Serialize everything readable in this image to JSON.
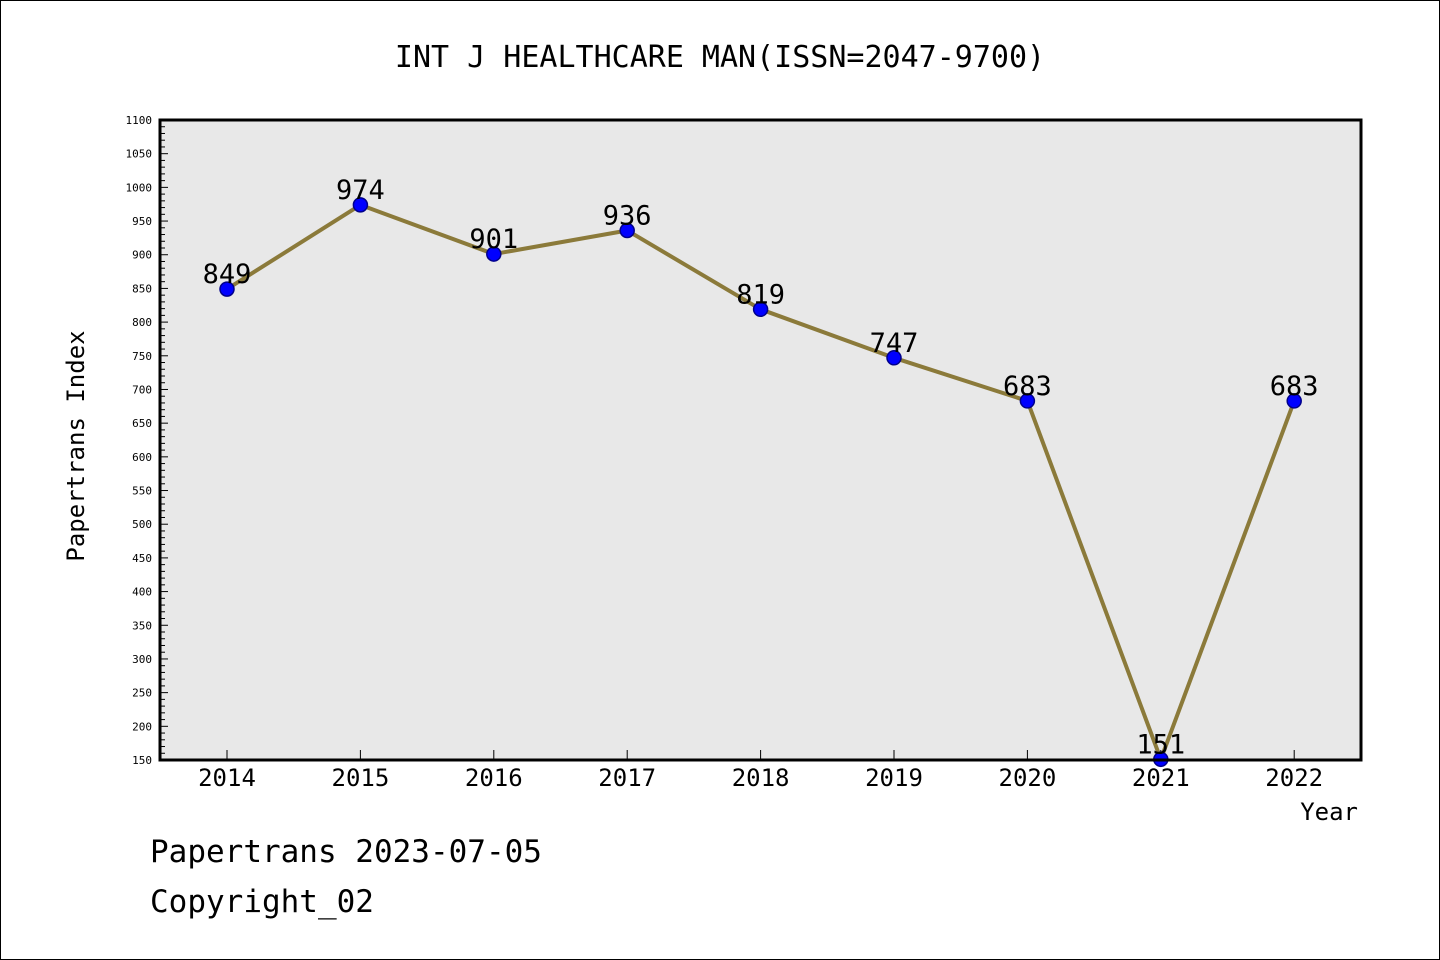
{
  "chart_data": {
    "type": "line",
    "title": "INT J HEALTHCARE MAN(ISSN=2047-9700)",
    "xlabel": "Year",
    "ylabel": "Papertrans Index",
    "categories": [
      "2014",
      "2015",
      "2016",
      "2017",
      "2018",
      "2019",
      "2020",
      "2021",
      "2022"
    ],
    "series": [
      {
        "values": [
          849,
          974,
          901,
          936,
          819,
          747,
          683,
          151,
          683
        ],
        "data_labels": [
          "849",
          "974",
          "901",
          "936",
          "819",
          "747",
          "683",
          "151",
          "683"
        ]
      }
    ],
    "ylim": [
      150,
      1100
    ],
    "yticks": [
      150,
      200,
      250,
      300,
      350,
      400,
      450,
      500,
      550,
      600,
      650,
      700,
      750,
      800,
      850,
      900,
      950,
      1000,
      1050,
      1100
    ],
    "grid": false,
    "legend": "none",
    "colors": {
      "plot_background": "#e8e8e8",
      "line": "#8b7a3a",
      "marker": "#0000ff",
      "marker_edge": "#00008b",
      "frame": "#000000"
    }
  },
  "footer": {
    "line1": "Papertrans 2023-07-05",
    "line2": "Copyright_02"
  }
}
